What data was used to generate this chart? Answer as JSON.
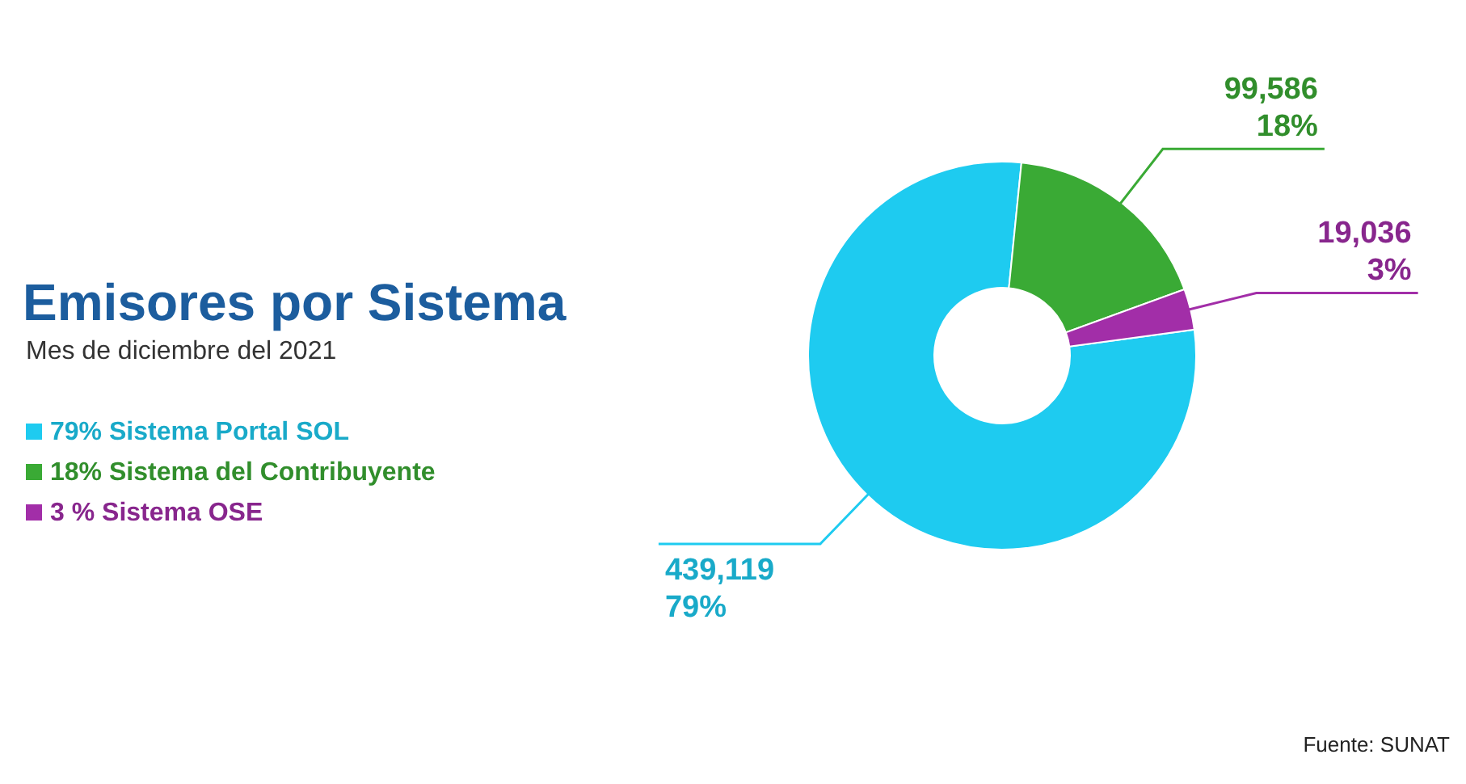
{
  "chart_data": {
    "type": "donut",
    "title": "Emisores por Sistema",
    "subtitle": "Mes de diciembre del 2021",
    "categories": [
      "79% Sistema Portal SOL",
      "18% Sistema del Contribuyente",
      "3 % Sistema OSE"
    ],
    "values": [
      439119,
      99586,
      19036
    ],
    "colors": [
      "#1ecbf0",
      "#3aaa35",
      "#a22ea8"
    ],
    "value_labels": [
      "439,119\n79%",
      "99,586\n18%",
      "19,036\n3%"
    ],
    "legend": "left",
    "annotations": [
      "Fuente: SUNAT"
    ]
  }
}
